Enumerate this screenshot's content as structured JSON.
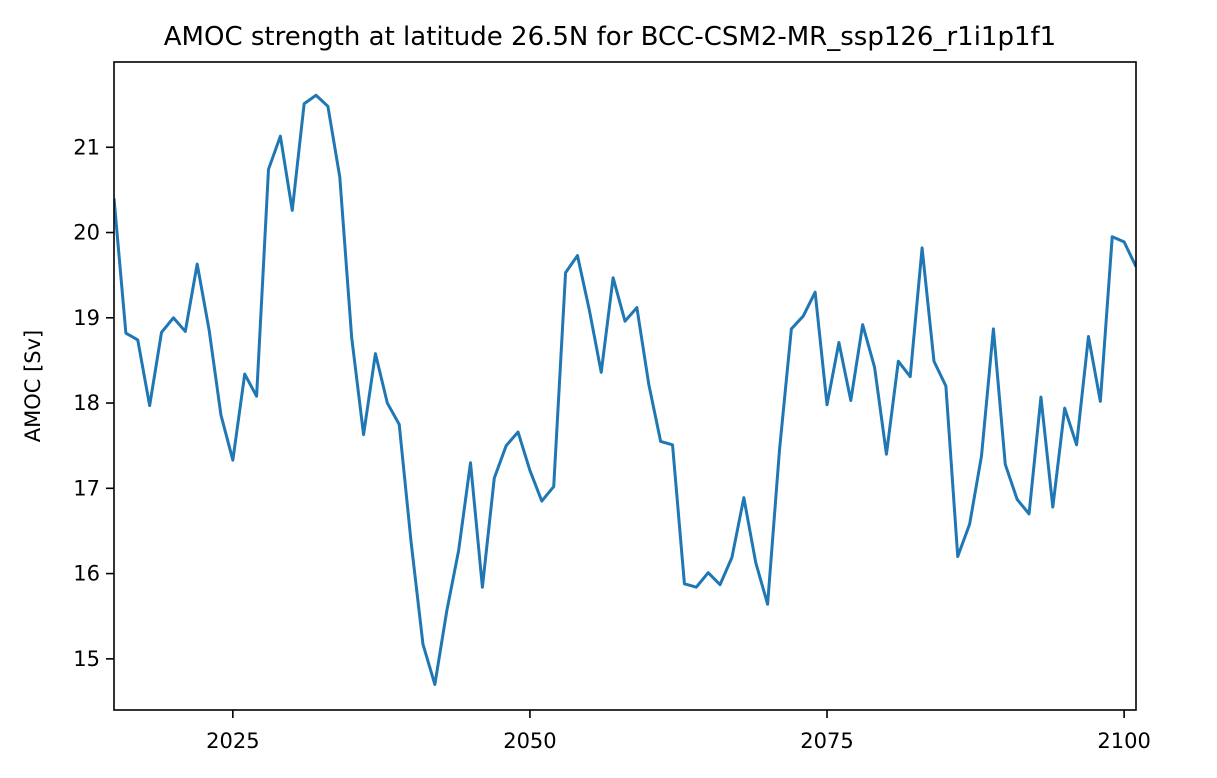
{
  "chart_data": {
    "type": "line",
    "title": "AMOC strength at latitude 26.5N for BCC-CSM2-MR_ssp126_r1i1p1f1",
    "xlabel": "",
    "ylabel": "AMOC [Sv]",
    "xlim": [
      2015,
      2101
    ],
    "ylim": [
      14.4,
      22.0
    ],
    "xticks": [
      2025,
      2050,
      2075,
      2100
    ],
    "yticks": [
      15,
      16,
      17,
      18,
      19,
      20,
      21
    ],
    "grid": false,
    "color": "#1f77b4",
    "series": [
      {
        "x": [
          2015,
          2016,
          2017,
          2018,
          2019,
          2020,
          2021,
          2022,
          2023,
          2024,
          2025,
          2026,
          2027,
          2028,
          2029,
          2030,
          2031,
          2032,
          2033,
          2034,
          2035,
          2036,
          2037,
          2038,
          2039,
          2040,
          2041,
          2042,
          2043,
          2044,
          2045,
          2046,
          2047,
          2048,
          2049,
          2050,
          2051,
          2052,
          2053,
          2054,
          2055,
          2056,
          2057,
          2058,
          2059,
          2060,
          2061,
          2062,
          2063,
          2064,
          2065,
          2066,
          2067,
          2068,
          2069,
          2070,
          2071,
          2072,
          2073,
          2074,
          2075,
          2076,
          2077,
          2078,
          2079,
          2080,
          2081,
          2082,
          2083,
          2084,
          2085,
          2086,
          2087,
          2088,
          2089,
          2090,
          2091,
          2092,
          2093,
          2094,
          2095,
          2096,
          2097,
          2098,
          2099,
          2100,
          2101
        ],
        "values": [
          20.4,
          18.82,
          18.74,
          17.97,
          18.83,
          19.0,
          18.84,
          19.63,
          18.86,
          17.86,
          17.33,
          18.34,
          18.08,
          20.74,
          21.13,
          20.26,
          21.51,
          21.61,
          21.48,
          20.65,
          18.77,
          17.63,
          18.58,
          18.0,
          17.75,
          16.37,
          15.17,
          14.7,
          15.56,
          16.27,
          17.3,
          15.84,
          17.12,
          17.5,
          17.66,
          17.21,
          16.85,
          17.02,
          19.53,
          19.73,
          19.09,
          18.36,
          19.47,
          18.96,
          19.12,
          18.22,
          17.55,
          17.51,
          15.88,
          15.84,
          16.01,
          15.87,
          16.19,
          16.89,
          16.13,
          15.64,
          17.45,
          18.87,
          19.02,
          19.3,
          17.98,
          18.71,
          18.03,
          18.92,
          18.42,
          17.4,
          18.49,
          18.31,
          19.82,
          18.49,
          18.2,
          16.2,
          16.58,
          17.38,
          18.87,
          17.28,
          16.87,
          16.7,
          18.07,
          16.78,
          17.94,
          17.51,
          18.78,
          18.02,
          19.95,
          19.89,
          19.6
        ]
      }
    ]
  }
}
